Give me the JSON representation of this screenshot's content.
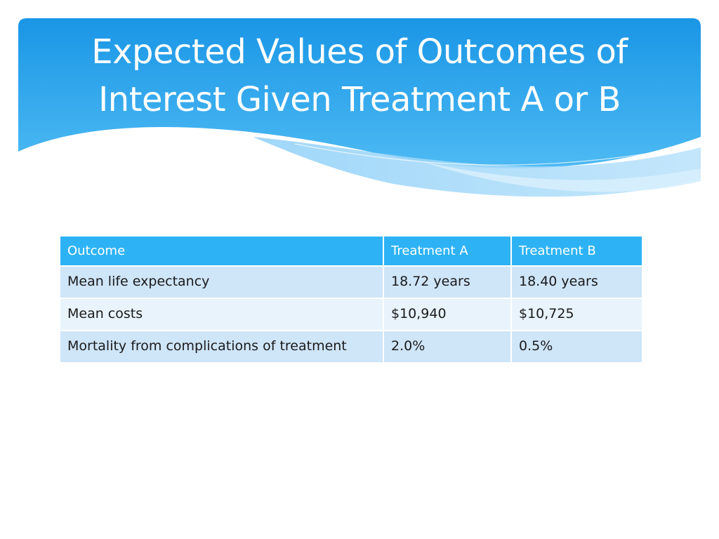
{
  "slide": {
    "title": "Expected Values of Outcomes of Interest Given Treatment A or B"
  },
  "table": {
    "headers": [
      "Outcome",
      "Treatment A",
      "Treatment B"
    ],
    "rows": [
      [
        "Mean life expectancy",
        "18.72 years",
        "18.40 years"
      ],
      [
        "Mean costs",
        "$10,940",
        "$10,725"
      ],
      [
        "Mortality from complications of treatment",
        "2.0%",
        "0.5%"
      ]
    ]
  },
  "colors": {
    "header_blue": "#2db3f5",
    "row_odd": "#cfe5f8",
    "row_even": "#e8f3fc",
    "title_text": "#ffffff"
  }
}
